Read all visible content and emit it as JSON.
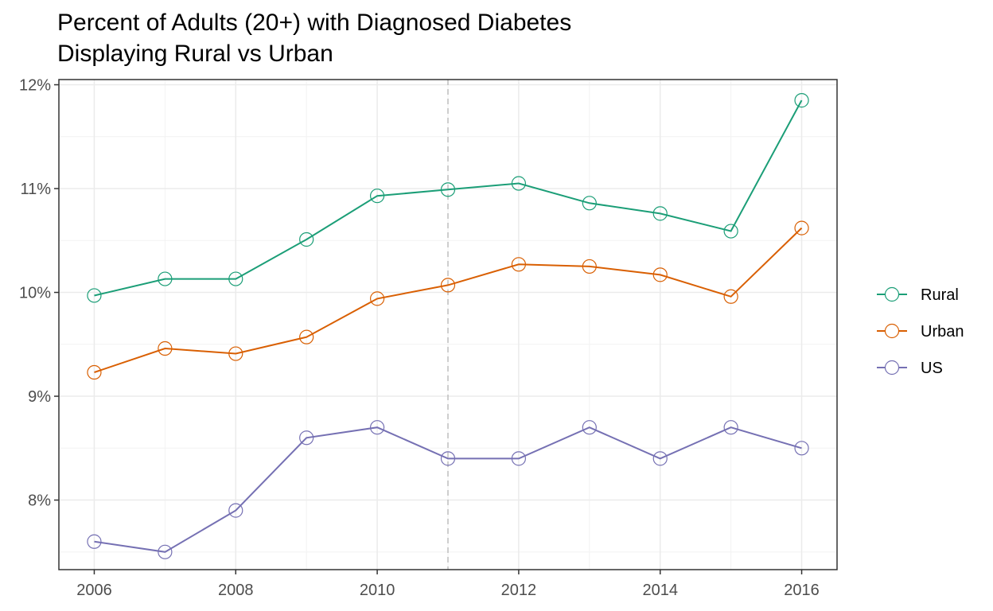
{
  "chart_data": {
    "type": "line",
    "title": "Percent of Adults (20+) with Diagnosed Diabetes",
    "subtitle": "Displaying Rural vs Urban",
    "xlabel": "",
    "ylabel": "",
    "x": [
      2006,
      2007,
      2008,
      2009,
      2010,
      2011,
      2012,
      2013,
      2014,
      2015,
      2016
    ],
    "xlim": [
      2005.5,
      2016.5
    ],
    "ylim": [
      7.33,
      12.05
    ],
    "x_ticks": [
      2006,
      2008,
      2010,
      2012,
      2014,
      2016
    ],
    "y_ticks": [
      8,
      9,
      10,
      11,
      12
    ],
    "y_tick_labels": [
      "8%",
      "9%",
      "10%",
      "11%",
      "12%"
    ],
    "reference_line_x": 2011,
    "grid": true,
    "legend_position": "right",
    "series": [
      {
        "name": "Rural",
        "color": "#1b9e77",
        "values": [
          9.97,
          10.13,
          10.13,
          10.51,
          10.93,
          10.99,
          11.05,
          10.86,
          10.76,
          10.59,
          11.85
        ]
      },
      {
        "name": "Urban",
        "color": "#d95f02",
        "values": [
          9.23,
          9.46,
          9.41,
          9.57,
          9.94,
          10.07,
          10.27,
          10.25,
          10.17,
          9.96,
          10.62
        ]
      },
      {
        "name": "US",
        "color": "#7570b3",
        "values": [
          7.6,
          7.5,
          7.9,
          8.6,
          8.7,
          8.4,
          8.4,
          8.7,
          8.4,
          8.7,
          8.5
        ]
      }
    ]
  }
}
